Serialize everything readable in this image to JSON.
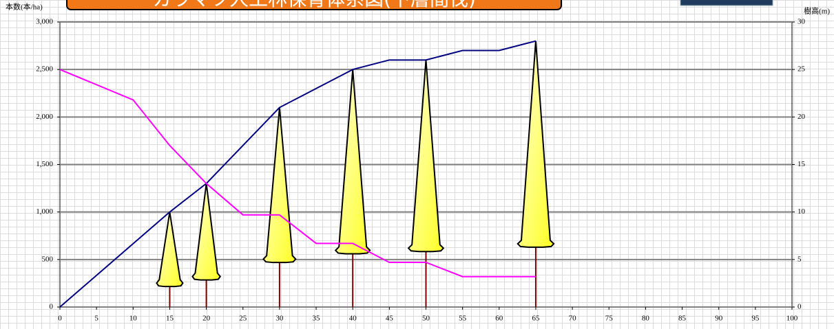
{
  "chart_data": {
    "type": "line",
    "title": "カラマツ人工林保育体系図(下層間伐)",
    "ylabel": "本数(本/ha)",
    "y2label": "樹高(m)",
    "xlim": [
      0,
      100
    ],
    "xticks": [
      0,
      5,
      10,
      15,
      20,
      25,
      30,
      35,
      40,
      45,
      50,
      55,
      60,
      65,
      70,
      75,
      80,
      85,
      90,
      95,
      100
    ],
    "ylim": [
      0,
      3000
    ],
    "yticks": [
      0,
      {
        "value": 500,
        "label": "500"
      },
      {
        "value": 1000,
        "label": "1,000"
      },
      {
        "value": 1500,
        "label": "1,500"
      },
      {
        "value": 2000,
        "label": "2,000"
      },
      {
        "value": 2500,
        "label": "2,500"
      },
      {
        "value": 3000,
        "label": "3,000"
      }
    ],
    "y2lim": [
      0,
      30
    ],
    "y2ticks": [
      0,
      5,
      10,
      15,
      20,
      25,
      30
    ],
    "grid": true,
    "series": [
      {
        "color": "#000080",
        "axis": "y2",
        "x": [
          0,
          15,
          20,
          25,
          30,
          35,
          40,
          45,
          50,
          55,
          60,
          65
        ],
        "values": [
          0,
          10,
          13,
          17,
          21,
          23,
          25,
          26,
          26,
          27,
          27,
          28
        ]
      },
      {
        "color": "#ff00ff",
        "x": [
          0,
          10,
          15,
          20,
          25,
          30,
          35,
          40,
          45,
          50,
          55,
          60,
          65
        ],
        "values": [
          2500,
          2180,
          1700,
          1300,
          970,
          970,
          670,
          670,
          470,
          470,
          320,
          320,
          320
        ]
      }
    ],
    "trees": {
      "axis": "y2",
      "color": "#ffff40",
      "x": [
        15,
        20,
        30,
        40,
        50,
        65
      ],
      "values": [
        10,
        13,
        21,
        25,
        26,
        28
      ]
    }
  }
}
